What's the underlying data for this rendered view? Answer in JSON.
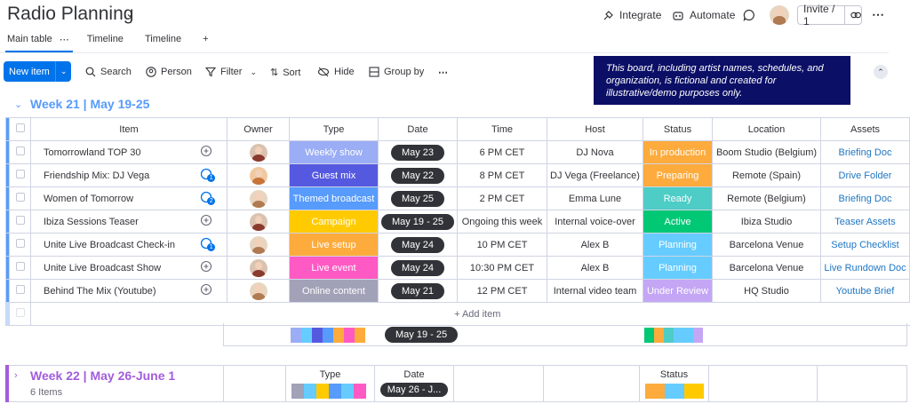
{
  "header": {
    "title": "Radio Planning",
    "integrate_label": "Integrate",
    "automate_label": "Automate",
    "invite_label": "Invite / 1"
  },
  "tabs": [
    "Main table",
    "Timeline",
    "Timeline"
  ],
  "toolbar": {
    "new_item_label": "New item",
    "search_label": "Search",
    "person_label": "Person",
    "filter_label": "Filter",
    "sort_label": "Sort",
    "hide_label": "Hide",
    "group_by_label": "Group by"
  },
  "notice": "This board, including artist names, schedules, and organization, is fictional and created for illustrative/demo purposes only.",
  "group1": {
    "title": "Week 21 | May 19-25",
    "columns": [
      "Item",
      "Owner",
      "Type",
      "Date",
      "Time",
      "Host",
      "Status",
      "Location",
      "Assets"
    ],
    "rows": [
      {
        "item": "Tomorrowland TOP 30",
        "conv": "plus",
        "owner": "m",
        "type": "Weekly show",
        "type_color": "#9aadf5",
        "date": "May 23",
        "time": "6 PM CET",
        "host": "DJ Nova",
        "status": "In production",
        "status_color": "#fdab3d",
        "location": "Boom Studio (Belgium)",
        "asset": "Briefing Doc"
      },
      {
        "item": "Friendship Mix: DJ Vega",
        "conv": "1",
        "owner": "f2",
        "type": "Guest mix",
        "type_color": "#5559df",
        "date": "May 22",
        "time": "8 PM CET",
        "host": "DJ Vega (Freelance)",
        "status": "Preparing",
        "status_color": "#fdab3d",
        "location": "Remote (Spain)",
        "asset": "Drive Folder"
      },
      {
        "item": "Women of Tomorrow",
        "conv": "2",
        "owner": "f",
        "type": "Themed broadcast",
        "type_color": "#579bfc",
        "date": "May 25",
        "time": "2 PM CET",
        "host": "Emma Lune",
        "status": "Ready",
        "status_color": "#4eccc6",
        "location": "Remote (Belgium)",
        "asset": "Briefing Doc"
      },
      {
        "item": "Ibiza Sessions Teaser",
        "conv": "plus",
        "owner": "m",
        "type": "Campaign",
        "type_color": "#ffcb00",
        "date": "May 19 - 25",
        "time": "Ongoing this week",
        "host": "Internal voice-over",
        "status": "Active",
        "status_color": "#00c875",
        "location": "Ibiza Studio",
        "asset": "Teaser Assets"
      },
      {
        "item": "Unite Live Broadcast Check-in",
        "conv": "1",
        "owner": "f",
        "type": "Live setup",
        "type_color": "#fdab3d",
        "date": "May 24",
        "time": "10 PM CET",
        "host": "Alex B",
        "status": "Planning",
        "status_color": "#66ccff",
        "location": "Barcelona Venue",
        "asset": "Setup Checklist"
      },
      {
        "item": "Unite Live Broadcast Show",
        "conv": "plus",
        "owner": "m",
        "type": "Live event",
        "type_color": "#ff5ac4",
        "date": "May 24",
        "time": "10:30 PM CET",
        "host": "Alex B",
        "status": "Planning",
        "status_color": "#66ccff",
        "location": "Barcelona Venue",
        "asset": "Live Rundown Doc"
      },
      {
        "item": "Behind The Mix (Youtube)",
        "conv": "plus",
        "owner": "f",
        "type": "Online content",
        "type_color": "#a1a1b8",
        "date": "May 21",
        "time": "12 PM CET",
        "host": "Internal video team",
        "status": "Under Review",
        "status_color": "#c4a6f5",
        "location": "HQ Studio",
        "asset": "Youtube Brief"
      }
    ],
    "add_item_label": "+ Add item",
    "summary_date": "May 19 - 25",
    "type_summary_colors": [
      "#9aadf5",
      "#66ccff",
      "#5559df",
      "#579bfc",
      "#fdab3d",
      "#ff5ac4",
      "#fdab3d"
    ],
    "status_summary_colors": [
      "#00c875",
      "#fdab3d",
      "#4eccc6",
      "#66ccff",
      "#66ccff",
      "#c4a6f5"
    ]
  },
  "group2": {
    "title": "Week 22 | May 26-June 1",
    "count": "6 Items",
    "type_label": "Type",
    "date_label": "Date",
    "status_label": "Status",
    "summary_date": "May 26 - J...",
    "type_summary_colors": [
      "#a1a1b8",
      "#66ccff",
      "#ffcb00",
      "#579bfc",
      "#66ccff",
      "#ff5ac4"
    ],
    "status_summary_colors": [
      "#fdab3d",
      "#66ccff",
      "#ffcb00"
    ]
  }
}
